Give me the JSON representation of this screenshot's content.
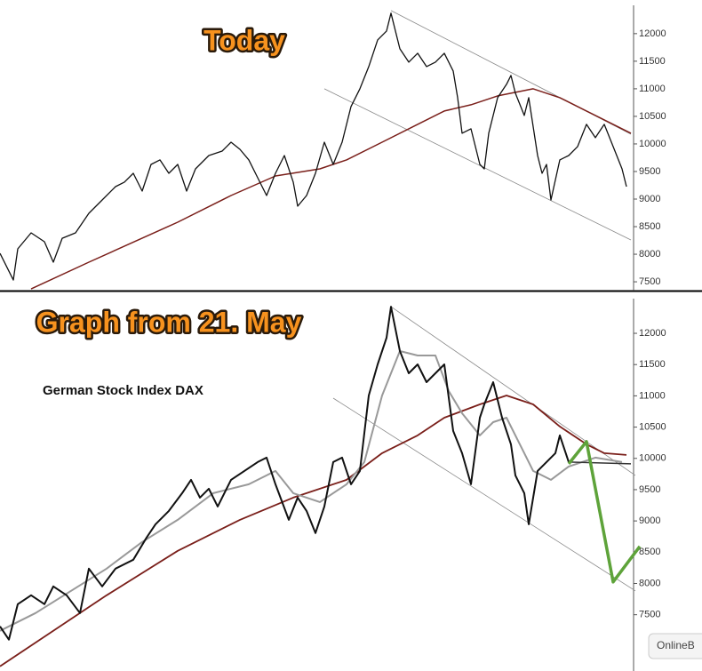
{
  "chart_data": [
    {
      "type": "line",
      "title": "Today",
      "xlim": [
        0,
        143
      ],
      "ylim": [
        7340,
        12610
      ],
      "yticks": [
        7500,
        8000,
        8500,
        9000,
        9500,
        10000,
        10500,
        11000,
        11500,
        12000
      ],
      "series": [
        {
          "color": "#888888",
          "width": 0.8,
          "x": [
            88,
            142
          ],
          "values": [
            12419,
            10177
          ]
        },
        {
          "color": "#888888",
          "width": 0.8,
          "x": [
            73,
            142
          ],
          "values": [
            11000,
            8258
          ]
        },
        {
          "color": "#7a1f1a",
          "width": 1.5,
          "x": [
            7,
            20,
            40,
            52,
            62,
            72,
            78,
            86,
            94,
            100,
            106,
            112,
            120,
            126,
            132,
            140,
            142
          ],
          "values": [
            7371,
            7855,
            8581,
            9065,
            9419,
            9548,
            9710,
            10032,
            10355,
            10597,
            10710,
            10871,
            11000,
            10839,
            10597,
            10274,
            10194
          ]
        },
        {
          "color": "#111111",
          "width": 1.3,
          "x": [
            0,
            3,
            4,
            7,
            10,
            12,
            14,
            17,
            20,
            23,
            26,
            28,
            30,
            32,
            34,
            36,
            38,
            40,
            42,
            44,
            47,
            50,
            52,
            54,
            56,
            58,
            60,
            62,
            64,
            66,
            67,
            69,
            71,
            73,
            75,
            77,
            79,
            81,
            83,
            85,
            87,
            88,
            90,
            92,
            94,
            96,
            98,
            100,
            102,
            103,
            104,
            106,
            108,
            109,
            110,
            112,
            114,
            115,
            116,
            118,
            119,
            121,
            122,
            123,
            124,
            126,
            128,
            130,
            132,
            134,
            136,
            138,
            140,
            141
          ],
          "values": [
            8016,
            7532,
            8097,
            8387,
            8226,
            7855,
            8290,
            8387,
            8742,
            8984,
            9226,
            9307,
            9468,
            9145,
            9629,
            9710,
            9468,
            9629,
            9145,
            9548,
            9790,
            9871,
            10032,
            9903,
            9710,
            9387,
            9065,
            9468,
            9790,
            9307,
            8871,
            9065,
            9468,
            10032,
            9629,
            10032,
            10677,
            11000,
            11403,
            11887,
            12048,
            12371,
            11726,
            11484,
            11645,
            11403,
            11484,
            11645,
            11323,
            10839,
            10194,
            10274,
            9629,
            9548,
            10194,
            10839,
            11081,
            11242,
            10919,
            10516,
            10839,
            9790,
            9468,
            9629,
            8984,
            9710,
            9790,
            9952,
            10355,
            10113,
            10355,
            9952,
            9548,
            9226
          ]
        }
      ]
    },
    {
      "type": "line",
      "title": "Graph from 21. May",
      "subtitle": "German Stock Index DAX",
      "watermark": "OnlineB",
      "xlim": [
        0,
        143
      ],
      "ylim": [
        6600,
        12640
      ],
      "yticks": [
        7500,
        8000,
        8500,
        9000,
        9500,
        10000,
        10500,
        11000,
        11500,
        12000
      ],
      "series": [
        {
          "color": "#888888",
          "width": 0.8,
          "x": [
            88,
            143
          ],
          "values": [
            12426,
            9728
          ]
        },
        {
          "color": "#888888",
          "width": 0.8,
          "x": [
            75,
            143
          ],
          "values": [
            10963,
            7882
          ]
        },
        {
          "color": "#7a1f1a",
          "width": 1.8,
          "x": [
            0,
            12,
            24,
            40,
            54,
            66,
            78,
            86,
            94,
            100,
            108,
            114,
            120,
            126,
            132,
            136,
            141
          ],
          "values": [
            6675,
            7243,
            7811,
            8521,
            9018,
            9373,
            9657,
            10083,
            10367,
            10651,
            10864,
            11006,
            10864,
            10509,
            10225,
            10083,
            10055
          ]
        },
        {
          "color": "#999999",
          "width": 2,
          "x": [
            0,
            8,
            16,
            24,
            32,
            40,
            48,
            56,
            62,
            66,
            72,
            78,
            82,
            86,
            90,
            94,
            98,
            101,
            104,
            108,
            111,
            114,
            117,
            120,
            124,
            128,
            134,
            140
          ],
          "values": [
            7243,
            7527,
            7882,
            8237,
            8663,
            9018,
            9444,
            9586,
            9799,
            9444,
            9302,
            9586,
            9941,
            11006,
            11716,
            11645,
            11645,
            11077,
            10722,
            10367,
            10580,
            10651,
            10225,
            9799,
            9657,
            9870,
            10012,
            9941
          ]
        },
        {
          "color": "#111111",
          "width": 2,
          "x": [
            0,
            2,
            4,
            7,
            10,
            12,
            15,
            18,
            20,
            23,
            26,
            30,
            33,
            35,
            38,
            41,
            43,
            45,
            47,
            49,
            52,
            55,
            58,
            60,
            62,
            65,
            67,
            69,
            71,
            73,
            75,
            77,
            79,
            81,
            83,
            85,
            87,
            88,
            90,
            92,
            94,
            96,
            98,
            100,
            102,
            104,
            106,
            108,
            109,
            111,
            113,
            115,
            116,
            118,
            119,
            121,
            123,
            125,
            126,
            128
          ],
          "values": [
            7314,
            7101,
            7669,
            7811,
            7669,
            7953,
            7811,
            7527,
            8237,
            7953,
            8237,
            8379,
            8734,
            8947,
            9160,
            9444,
            9657,
            9373,
            9515,
            9231,
            9657,
            9799,
            9941,
            10012,
            9586,
            9018,
            9373,
            9160,
            8805,
            9231,
            9941,
            10012,
            9586,
            9799,
            11006,
            11503,
            11929,
            12426,
            11716,
            11361,
            11503,
            11219,
            11361,
            11503,
            10438,
            10083,
            9586,
            10651,
            10864,
            11219,
            10651,
            10225,
            9728,
            9444,
            8947,
            9799,
            9941,
            10083,
            10367,
            9941
          ]
        },
        {
          "color": "#333333",
          "width": 1.5,
          "x": [
            128,
            142
          ],
          "values": [
            9941,
            9913
          ]
        },
        {
          "color": "#5ea33a",
          "width": 3.5,
          "x": [
            128,
            132,
            138,
            144
          ],
          "values": [
            9913,
            10268,
            8024,
            8592
          ]
        }
      ]
    }
  ]
}
